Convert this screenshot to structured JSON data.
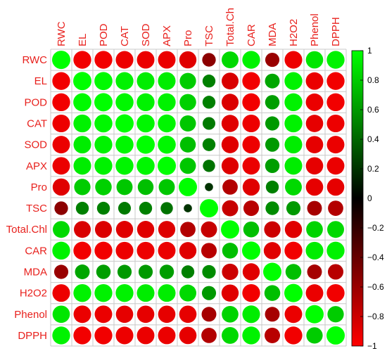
{
  "chart_data": {
    "type": "heatmap",
    "title": "",
    "variables": [
      "RWC",
      "EL",
      "POD",
      "CAT",
      "SOD",
      "APX",
      "Pro",
      "TSC",
      "Total.Chl",
      "CAR",
      "MDA",
      "H2O2",
      "Phenol",
      "DPPH"
    ],
    "column_labels": [
      "RWC",
      "EL",
      "POD",
      "CAT",
      "SOD",
      "APX",
      "Pro",
      "TSC",
      "Total.Ch",
      "CAR",
      "MDA",
      "H2O2",
      "Phenol",
      "DPPH"
    ],
    "matrix": [
      [
        1.0,
        -0.95,
        -0.95,
        -0.93,
        -0.92,
        -0.92,
        -0.88,
        -0.55,
        0.85,
        0.95,
        -0.6,
        -0.93,
        0.9,
        0.95
      ],
      [
        -0.95,
        1.0,
        0.98,
        0.95,
        0.93,
        0.93,
        0.8,
        0.5,
        -0.85,
        -0.95,
        0.65,
        0.95,
        -0.92,
        -0.95
      ],
      [
        -0.95,
        0.98,
        1.0,
        0.97,
        0.95,
        0.95,
        0.82,
        0.5,
        -0.86,
        -0.95,
        0.62,
        0.95,
        -0.92,
        -0.95
      ],
      [
        -0.93,
        0.95,
        0.97,
        1.0,
        0.97,
        0.96,
        0.78,
        0.48,
        -0.88,
        -0.93,
        0.6,
        0.95,
        -0.9,
        -0.93
      ],
      [
        -0.92,
        0.93,
        0.95,
        0.97,
        1.0,
        0.97,
        0.75,
        0.5,
        -0.88,
        -0.93,
        0.6,
        0.93,
        -0.9,
        -0.92
      ],
      [
        -0.92,
        0.93,
        0.95,
        0.96,
        0.97,
        1.0,
        0.78,
        0.45,
        -0.87,
        -0.92,
        0.62,
        0.93,
        -0.9,
        -0.92
      ],
      [
        -0.88,
        0.8,
        0.82,
        0.78,
        0.75,
        0.78,
        1.0,
        0.2,
        -0.7,
        -0.88,
        0.5,
        0.85,
        -0.9,
        -0.9
      ],
      [
        -0.55,
        0.5,
        0.5,
        0.48,
        0.5,
        0.45,
        0.2,
        1.0,
        -0.78,
        -0.72,
        0.55,
        0.6,
        -0.65,
        -0.7
      ],
      [
        0.85,
        -0.85,
        -0.86,
        -0.88,
        -0.88,
        -0.87,
        -0.7,
        -0.78,
        1.0,
        0.75,
        -0.8,
        -0.88,
        0.83,
        0.85
      ],
      [
        0.95,
        -0.95,
        -0.95,
        -0.93,
        -0.93,
        -0.92,
        -0.88,
        -0.72,
        0.75,
        1.0,
        -0.88,
        -0.95,
        0.93,
        0.95
      ],
      [
        -0.6,
        0.65,
        0.62,
        0.6,
        0.6,
        0.62,
        0.5,
        0.55,
        -0.8,
        -0.88,
        1.0,
        0.75,
        -0.65,
        -0.72
      ],
      [
        -0.93,
        0.95,
        0.95,
        0.95,
        0.93,
        0.93,
        0.85,
        0.6,
        -0.88,
        -0.95,
        0.75,
        1.0,
        -0.92,
        -0.95
      ],
      [
        0.9,
        -0.92,
        -0.92,
        -0.9,
        -0.9,
        -0.9,
        -0.9,
        -0.65,
        0.83,
        0.93,
        -0.65,
        -0.92,
        1.0,
        0.8
      ],
      [
        0.95,
        -0.95,
        -0.95,
        -0.93,
        -0.92,
        -0.92,
        -0.9,
        -0.7,
        0.85,
        0.95,
        -0.72,
        -0.95,
        0.8,
        1.0
      ]
    ],
    "color_scale": {
      "min": -1,
      "max": 1,
      "colors": [
        "#ff0000",
        "#000000",
        "#00ff00"
      ],
      "ticks": [
        "1",
        "0.8",
        "0.6",
        "0.4",
        "0.2",
        "0",
        "−0.2",
        "−0.4",
        "−0.6",
        "−0.8",
        "−1"
      ]
    },
    "grid": true,
    "legend": "right"
  }
}
